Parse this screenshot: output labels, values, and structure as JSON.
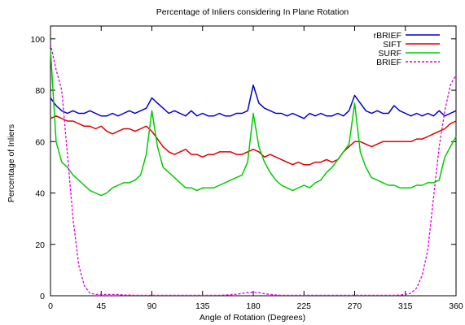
{
  "chart_data": {
    "type": "line",
    "title": "Percentage of Inliers considering In Plane Rotation",
    "xlabel": "Angle of Rotation (Degrees)",
    "ylabel": "Percentage of Inliers",
    "xlim": [
      0,
      360
    ],
    "ylim": [
      0,
      105
    ],
    "xticks": [
      0,
      45,
      90,
      135,
      180,
      225,
      270,
      315,
      360
    ],
    "yticks": [
      0,
      20,
      40,
      60,
      80,
      100
    ],
    "grid": false,
    "legend_position": "top-right",
    "x": [
      0,
      5,
      10,
      15,
      20,
      25,
      30,
      35,
      40,
      45,
      50,
      55,
      60,
      65,
      70,
      75,
      80,
      85,
      90,
      95,
      100,
      105,
      110,
      115,
      120,
      125,
      130,
      135,
      140,
      145,
      150,
      155,
      160,
      165,
      170,
      175,
      180,
      185,
      190,
      195,
      200,
      205,
      210,
      215,
      220,
      225,
      230,
      235,
      240,
      245,
      250,
      255,
      260,
      265,
      270,
      275,
      280,
      285,
      290,
      295,
      300,
      305,
      310,
      315,
      320,
      325,
      330,
      335,
      340,
      345,
      350,
      355,
      360
    ],
    "series": [
      {
        "name": "rBRIEF",
        "color": "#0000cc",
        "dash": "solid",
        "values": [
          77,
          74,
          72,
          71,
          72,
          71,
          71,
          72,
          71,
          70,
          70,
          71,
          70,
          71,
          72,
          71,
          72,
          73,
          77,
          75,
          73,
          71,
          72,
          71,
          70,
          72,
          70,
          71,
          70,
          70,
          71,
          70,
          70,
          71,
          71,
          72,
          82,
          75,
          73,
          72,
          71,
          71,
          70,
          71,
          70,
          69,
          71,
          70,
          71,
          70,
          70,
          71,
          70,
          72,
          78,
          75,
          72,
          71,
          72,
          71,
          71,
          74,
          72,
          71,
          70,
          71,
          70,
          71,
          70,
          72,
          70,
          71,
          72
        ]
      },
      {
        "name": "SIFT",
        "color": "#dd0000",
        "dash": "solid",
        "values": [
          69,
          70,
          69,
          68,
          68,
          67,
          66,
          66,
          65,
          66,
          64,
          63,
          64,
          65,
          65,
          64,
          65,
          66,
          64,
          61,
          58,
          56,
          55,
          56,
          57,
          55,
          55,
          54,
          55,
          55,
          56,
          56,
          56,
          55,
          55,
          56,
          57,
          56,
          54,
          55,
          54,
          53,
          52,
          51,
          52,
          51,
          51,
          52,
          52,
          53,
          52,
          53,
          56,
          58,
          60,
          60,
          59,
          58,
          59,
          60,
          60,
          60,
          60,
          60,
          60,
          61,
          61,
          62,
          63,
          64,
          65,
          67,
          68
        ]
      },
      {
        "name": "SURF",
        "color": "#00cc00",
        "dash": "solid",
        "values": [
          96,
          60,
          52,
          50,
          47,
          45,
          43,
          41,
          40,
          39,
          40,
          42,
          43,
          44,
          44,
          45,
          47,
          55,
          72,
          58,
          50,
          48,
          46,
          44,
          42,
          42,
          41,
          42,
          42,
          42,
          43,
          44,
          45,
          46,
          47,
          52,
          71,
          58,
          52,
          48,
          45,
          43,
          42,
          41,
          42,
          43,
          42,
          44,
          45,
          48,
          50,
          53,
          56,
          59,
          75,
          56,
          50,
          46,
          45,
          44,
          43,
          43,
          42,
          42,
          42,
          43,
          43,
          44,
          44,
          45,
          54,
          58,
          62
        ]
      },
      {
        "name": "BRIEF",
        "color": "#dd00dd",
        "dash": "dashed",
        "values": [
          98,
          88,
          80,
          55,
          30,
          12,
          4,
          1,
          0.5,
          0.5,
          0.5,
          0.5,
          0.5,
          0.3,
          0.3,
          0.2,
          0.2,
          0.2,
          0.2,
          0.2,
          0.2,
          0.2,
          0.2,
          0.2,
          0.2,
          0.2,
          0.2,
          0.2,
          0.2,
          0.2,
          0.2,
          0.3,
          0.4,
          0.6,
          0.9,
          1.2,
          1.4,
          1.2,
          0.8,
          0.5,
          0.3,
          0.2,
          0.2,
          0.2,
          0.2,
          0.2,
          0.2,
          0.2,
          0.2,
          0.2,
          0.2,
          0.2,
          0.2,
          0.2,
          0.2,
          0.2,
          0.2,
          0.2,
          0.2,
          0.2,
          0.2,
          0.2,
          0.3,
          0.5,
          1,
          3,
          8,
          18,
          38,
          58,
          72,
          82,
          86
        ]
      }
    ]
  }
}
